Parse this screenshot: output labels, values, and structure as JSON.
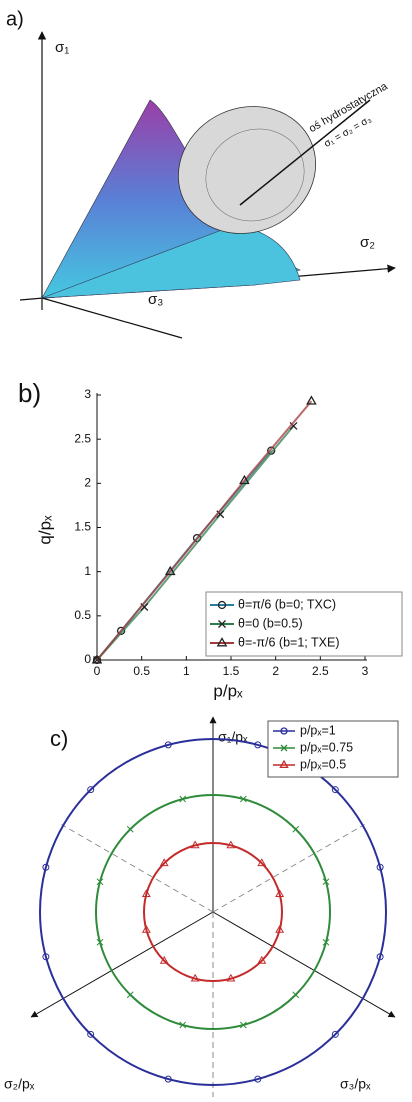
{
  "panel_a": {
    "label": "a)",
    "axis_1": "σ₁",
    "axis_2": "σ₂",
    "axis_3": "σ₃",
    "annotation": "oś hydrostatyczna",
    "equation": "σ₁ = σ₂ = σ₃"
  },
  "chart_data": {
    "type": "line",
    "panel_label": "b)",
    "x_label": "p/pₓ",
    "y_label": "q/pₓ",
    "xlim": [
      0,
      3
    ],
    "ylim": [
      0,
      3
    ],
    "xticks": [
      0,
      0.5,
      1,
      1.5,
      2,
      2.5,
      3
    ],
    "yticks": [
      0,
      0.5,
      1,
      1.5,
      2,
      2.5,
      3
    ],
    "series": [
      {
        "name": "θ=π/6  (b=0; TXC)",
        "color": "#2b7f9e",
        "marker": "circle",
        "x": [
          0,
          0.27,
          1.12,
          1.95
        ],
        "values": [
          0,
          0.33,
          1.38,
          2.37
        ]
      },
      {
        "name": "θ=0     (b=0.5)",
        "color": "#2e7d4f",
        "marker": "x",
        "x": [
          0,
          0.53,
          1.38,
          2.2
        ],
        "values": [
          0,
          0.6,
          1.65,
          2.65
        ]
      },
      {
        "name": "θ=-π/6 (b=1; TXE)",
        "color": "#a33a3a",
        "marker": "triangle",
        "x": [
          0,
          0.82,
          1.65,
          2.4
        ],
        "values": [
          0,
          1.0,
          2.03,
          2.93
        ]
      }
    ]
  },
  "panel_c": {
    "label": "c)",
    "axis_1": "σ₁/pₓ",
    "axis_2": "σ₂/pₓ",
    "axis_3": "σ₃/pₓ",
    "legend": [
      {
        "name": "p/pₓ=1",
        "color": "#2a2f9a",
        "marker": "circle"
      },
      {
        "name": "p/pₓ=0.75",
        "color": "#2e8b3a",
        "marker": "x"
      },
      {
        "name": "p/pₓ=0.5",
        "color": "#c42a2a",
        "marker": "triangle"
      }
    ]
  }
}
